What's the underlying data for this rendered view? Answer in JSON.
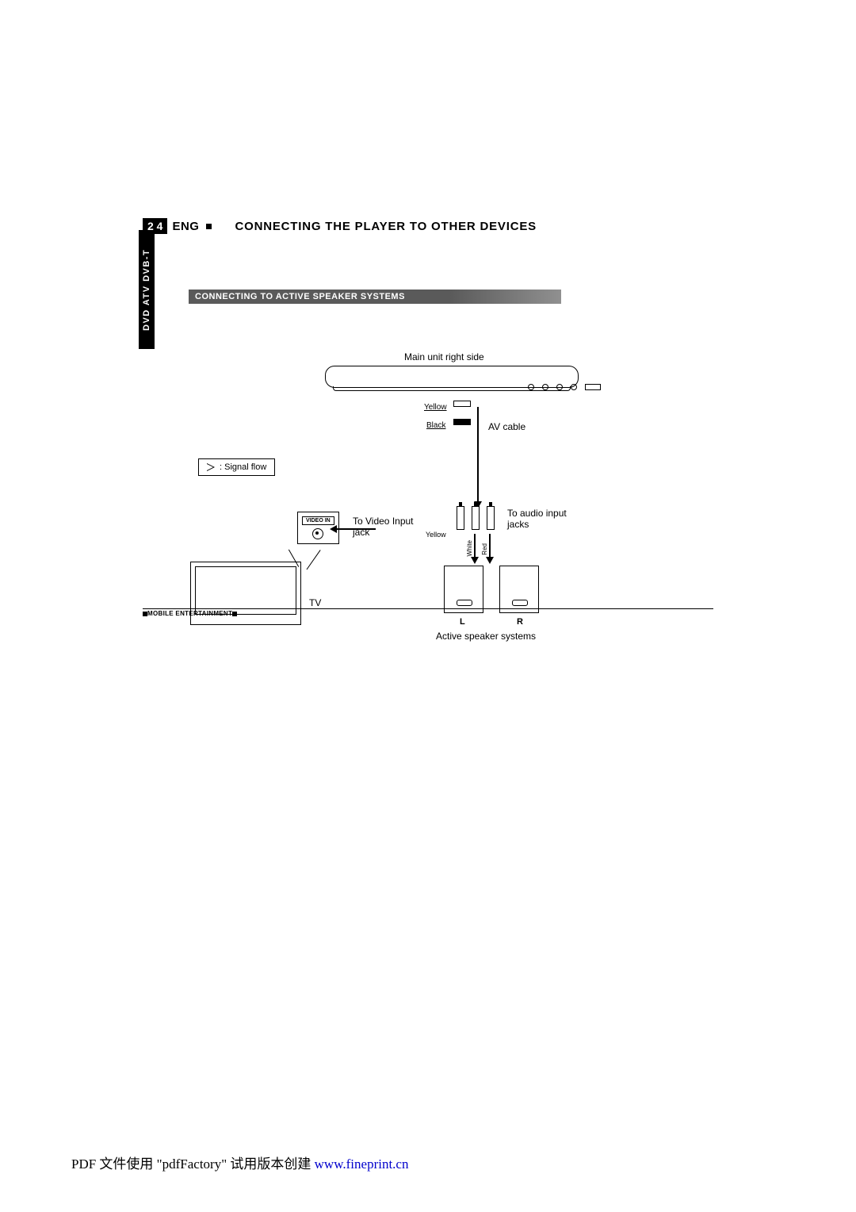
{
  "page_number": "2 4",
  "language": "ENG",
  "main_title": "CONNECTING THE PLAYER TO OTHER DEVICES",
  "side_tab": "DVD ATV DVB-T",
  "sub_header": "CONNECTING TO ACTIVE SPEAKER SYSTEMS",
  "diagram": {
    "main_unit_label": "Main unit right side",
    "yellow": "Yellow",
    "black": "Black",
    "av_cable": "AV cable",
    "signal_flow": ": Signal flow",
    "video_in": "VIDEO IN",
    "to_video": "To Video Input\njack",
    "yellow2": "Yellow",
    "white_v": "White",
    "red_v": "Red",
    "to_audio": "To audio input\njacks",
    "tv": "TV",
    "L": "L",
    "R": "R",
    "active_speakers": "Active speaker systems"
  },
  "footer": "MOBILE ENTERTAINMENT",
  "bottom": {
    "prefix": "PDF 文件使用 \"pdfFactory\" 试用版本创建 ",
    "link_text": "www.fineprint.cn",
    "link_href": "#"
  },
  "colors": {
    "black": "#000000",
    "white": "#ffffff",
    "grey_bar_start": "#5a5a5a",
    "grey_bar_end": "#909090",
    "link": "#0000cc"
  }
}
